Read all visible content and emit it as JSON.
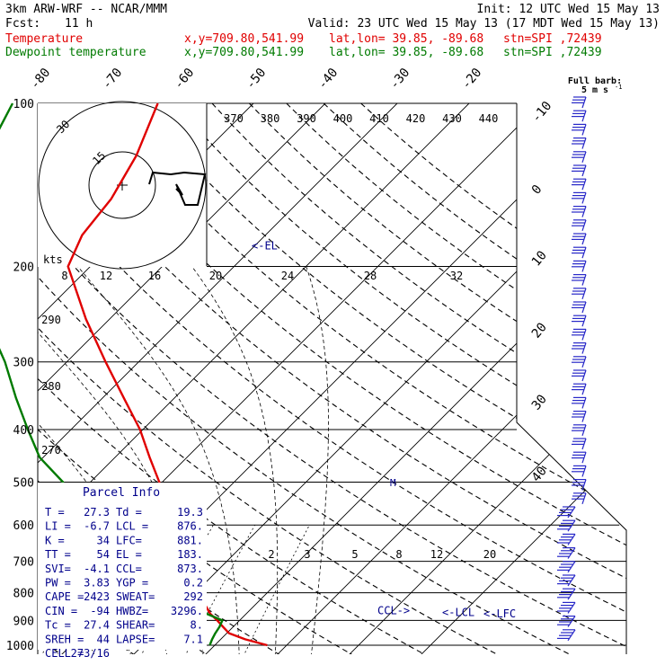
{
  "header": {
    "model": "3km ARW-WRF -- NCAR/MMM",
    "init": "Init: 12 UTC Wed 15 May 13",
    "fcst_label": "Fcst:",
    "fcst_value": "11 h",
    "valid": "Valid: 23 UTC Wed 15 May 13 (17 MDT Wed 15 May 13)"
  },
  "legend": [
    {
      "name": "Temperature",
      "color": "#e00000",
      "xy": "x,y=709.80,541.99",
      "latlon": "lat,lon= 39.85, -89.68",
      "stn": "stn=SPI ,72439"
    },
    {
      "name": "Dewpoint temperature",
      "color": "#007a00",
      "xy": "x,y=709.80,541.99",
      "latlon": "lat,lon= 39.85, -89.68",
      "stn": "stn=SPI ,72439"
    }
  ],
  "colors": {
    "temperature": "#e00000",
    "dewpoint": "#007a00",
    "index_text": "#00008b",
    "barb": "#2828c8",
    "grid": "#000000"
  },
  "chart_data": {
    "type": "line",
    "title": "3km ARW-WRF -- NCAR/MMM",
    "y_axis": {
      "quantity": "pressure",
      "unit": "hPa",
      "scale": "log",
      "range": [
        1000,
        100
      ],
      "ticks": [
        100,
        200,
        300,
        400,
        500,
        600,
        700,
        800,
        900,
        1000
      ]
    },
    "skewed_isotherm_labels": [
      -80,
      -70,
      -60,
      -50,
      -40,
      -30,
      -20,
      -10,
      0,
      10,
      20,
      30,
      40
    ],
    "theta_labels": [
      370,
      380,
      390,
      400,
      410,
      420,
      430,
      440
    ],
    "dry_adiabat_labels_left": [
      290,
      280,
      270
    ],
    "mixing_ratio_labels": [
      2,
      3,
      5,
      8,
      12,
      20
    ],
    "series": [
      {
        "name": "Temperature",
        "color": "#e00000",
        "points": [
          [
            1000,
            27.3
          ],
          [
            975,
            23.4
          ],
          [
            950,
            20.3
          ],
          [
            925,
            18.6
          ],
          [
            900,
            16.9
          ],
          [
            875,
            15.0
          ],
          [
            850,
            13.5
          ],
          [
            800,
            10.3
          ],
          [
            750,
            7.3
          ],
          [
            700,
            3.9
          ],
          [
            650,
            0.5
          ],
          [
            600,
            -2.9
          ],
          [
            550,
            -6.5
          ],
          [
            500,
            -10.4
          ],
          [
            450,
            -15.2
          ],
          [
            400,
            -20.4
          ],
          [
            350,
            -27.0
          ],
          [
            300,
            -34.6
          ],
          [
            250,
            -43.3
          ],
          [
            200,
            -53.1
          ],
          [
            175,
            -55.5
          ],
          [
            150,
            -56.5
          ],
          [
            125,
            -59.0
          ],
          [
            100,
            -63.3
          ]
        ]
      },
      {
        "name": "Dewpoint temperature",
        "color": "#007a00",
        "points": [
          [
            1000,
            19.3
          ],
          [
            975,
            18.8
          ],
          [
            950,
            18.4
          ],
          [
            925,
            18.1
          ],
          [
            900,
            17.6
          ],
          [
            875,
            14.5
          ],
          [
            850,
            11.9
          ],
          [
            800,
            7.3
          ],
          [
            750,
            3.2
          ],
          [
            700,
            -3.2
          ],
          [
            650,
            -8.7
          ],
          [
            600,
            -15.2
          ],
          [
            550,
            -20.0
          ],
          [
            500,
            -23.8
          ],
          [
            450,
            -30.5
          ],
          [
            400,
            -36.0
          ],
          [
            350,
            -42.0
          ],
          [
            300,
            -48.6
          ],
          [
            250,
            -57.2
          ],
          [
            200,
            -67.5
          ],
          [
            175,
            -72.0
          ],
          [
            150,
            -76.5
          ],
          [
            125,
            -80.0
          ],
          [
            100,
            -83.5
          ]
        ]
      }
    ],
    "level_markers": [
      {
        "label": "<-EL",
        "pressure": 183
      },
      {
        "label": "<-LCL",
        "pressure": 876
      },
      {
        "label": "<-LFC",
        "pressure": 881
      },
      {
        "label": "CCL->",
        "pressure": 873
      }
    ],
    "wind_barbs_title": "Full barb:",
    "wind_barbs_unit": "5 m s",
    "hodograph": {
      "unit_label": "kts",
      "ring_labels": [
        "15",
        "30"
      ],
      "speed_labels": [
        8,
        12,
        16,
        20,
        24,
        28,
        32
      ]
    },
    "parcel_info": {
      "title": "Parcel Info",
      "rows": [
        [
          "T  =",
          "27.3",
          "Td =",
          "19.3"
        ],
        [
          "LI =",
          "-6.7",
          "LCL =",
          "876."
        ],
        [
          "K  =",
          "34",
          "LFC=",
          "881."
        ],
        [
          "TT =",
          "54",
          "EL =",
          "183."
        ],
        [
          "SVI=",
          "-4.1",
          "CCL=",
          "873."
        ],
        [
          "PW =",
          "3.83",
          "YGP =",
          "0.2"
        ],
        [
          "CAPE =",
          "2423",
          "SWEAT=",
          "292"
        ],
        [
          "CIN =",
          "-94",
          "HWBZ=",
          "3296."
        ],
        [
          "Tc =",
          "27.4",
          "SHEAR=",
          "8."
        ],
        [
          "SREH =",
          "44",
          "LAPSE=",
          "7.1"
        ],
        [
          "CELL =",
          "273/16",
          "",
          ""
        ]
      ]
    }
  }
}
